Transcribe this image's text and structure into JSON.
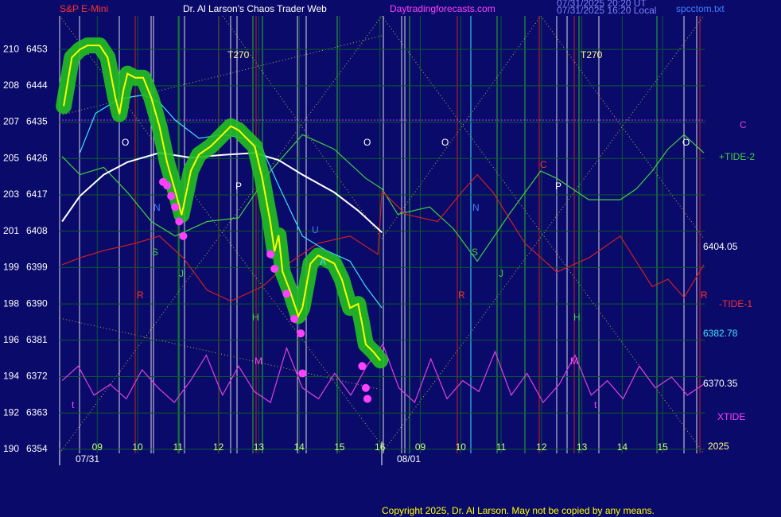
{
  "header": {
    "symbol": "S&P E-Mini",
    "title": "Dr. Al Larson's Chaos Trader Web",
    "site": "Daytradingforecasts.com",
    "stamp1": "07/31/2025 20:20 UT",
    "stamp2": "07/31/2025 16:20 Local",
    "file": "spcctom.txt"
  },
  "chart_data": {
    "type": "line",
    "xlim": [
      -0.95,
      15.05
    ],
    "xticks": [
      {
        "value": 0,
        "label": "09"
      },
      {
        "value": 1,
        "label": "10"
      },
      {
        "value": 2,
        "label": "11"
      },
      {
        "value": 3,
        "label": "12"
      },
      {
        "value": 4,
        "label": "13"
      },
      {
        "value": 5,
        "label": "14"
      },
      {
        "value": 6,
        "label": "15"
      },
      {
        "value": 7,
        "label": "16"
      },
      {
        "value": 8,
        "label": "09"
      },
      {
        "value": 9,
        "label": "10"
      },
      {
        "value": 10,
        "label": "11"
      },
      {
        "value": 11,
        "label": "12"
      },
      {
        "value": 12,
        "label": "13"
      },
      {
        "value": 13,
        "label": "14"
      },
      {
        "value": 14,
        "label": "15"
      }
    ],
    "dates": [
      "07/31",
      "08/01"
    ],
    "ylim": [
      6353,
      6461.3
    ],
    "yticks": [
      6354,
      6363,
      6372,
      6381,
      6390,
      6399,
      6408,
      6417,
      6426,
      6435,
      6444,
      6453
    ],
    "ytick_alt_labels": [
      "190",
      "192",
      "194",
      "196",
      "198",
      "199",
      "201",
      "203",
      "205",
      "207",
      "208",
      "210"
    ],
    "grid": true,
    "grid_color": "#0b5a2e",
    "reference_line": {
      "value": 6435.5,
      "color": "#c040ff"
    },
    "series": [
      {
        "name": "+TIDE-2",
        "color": "#40d040",
        "x": [
          -0.87,
          -0.43,
          0.16,
          0.75,
          1.34,
          1.93,
          2.72,
          3.5,
          4.29,
          5.08,
          5.87,
          6.65,
          7.05,
          7.44,
          8.23,
          8.82,
          9.41,
          10.2,
          10.98,
          11.38,
          12.17,
          12.95,
          13.35,
          13.74,
          14.13,
          14.53,
          15.02
        ],
        "values": [
          6426.5,
          6422.0,
          6423.8,
          6417.6,
          6410.4,
          6406.8,
          6410.4,
          6411.3,
          6422.9,
          6431.9,
          6428.3,
          6421.1,
          6418.5,
          6412.2,
          6414.0,
          6408.6,
          6400.6,
          6412.2,
          6422.9,
          6421.1,
          6415.8,
          6415.8,
          6418.5,
          6422.9,
          6428.3,
          6431.9,
          6427.4
        ]
      },
      {
        "name": "-TIDE-1",
        "color": "#d02020",
        "x": [
          -0.87,
          -0.43,
          0.16,
          0.94,
          1.54,
          2.13,
          2.72,
          3.31,
          4.09,
          4.69,
          5.47,
          6.26,
          6.95,
          7.05,
          7.64,
          8.43,
          9.02,
          9.41,
          9.8,
          10.59,
          11.38,
          12.17,
          12.95,
          13.74,
          14.13,
          14.53,
          15.02
        ],
        "values": [
          6399.7,
          6401.4,
          6403.2,
          6405.0,
          6406.8,
          6401.4,
          6393.4,
          6390.7,
          6394.3,
          6399.7,
          6405.0,
          6406.8,
          6402.3,
          6417.9,
          6412.2,
          6410.4,
          6417.6,
          6422.0,
          6417.6,
          6405.0,
          6397.9,
          6401.4,
          6406.8,
          6394.3,
          6396.1,
          6391.6,
          6399.7
        ]
      },
      {
        "name": "XTIDE",
        "color": "#e040e0",
        "x": [
          -0.87,
          -0.47,
          -0.08,
          0.32,
          0.72,
          1.11,
          1.51,
          1.91,
          2.31,
          2.7,
          3.1,
          3.5,
          3.89,
          4.29,
          4.69,
          5.08,
          5.48,
          5.88,
          6.28,
          6.67,
          7.07,
          7.47,
          7.86,
          8.26,
          8.66,
          9.05,
          9.45,
          9.85,
          10.25,
          10.64,
          11.04,
          11.44,
          11.83,
          12.23,
          12.63,
          13.02,
          13.42,
          13.82,
          14.22,
          14.61,
          15.01
        ],
        "values": [
          6371.0,
          6374.6,
          6367.4,
          6370.1,
          6366.5,
          6373.7,
          6369.2,
          6365.6,
          6371.0,
          6377.3,
          6367.4,
          6374.6,
          6368.3,
          6365.6,
          6379.1,
          6369.2,
          6366.5,
          6372.8,
          6367.4,
          6374.6,
          6380.0,
          6369.2,
          6365.6,
          6376.4,
          6366.5,
          6371.0,
          6368.3,
          6378.2,
          6367.4,
          6372.8,
          6365.6,
          6370.1,
          6377.3,
          6367.4,
          6371.0,
          6366.5,
          6374.6,
          6369.2,
          6371.9,
          6367.4,
          6370.1
        ]
      },
      {
        "color": "#ffffff",
        "end_label": 6404.05,
        "x": [
          -0.87,
          -0.43,
          0.16,
          0.75,
          1.54,
          2.32,
          3.11,
          3.9,
          4.49,
          5.08,
          5.87,
          6.46,
          7.05
        ],
        "values": [
          6410.4,
          6416.7,
          6422.0,
          6425.1,
          6427.4,
          6426.2,
          6426.9,
          6427.4,
          6425.6,
          6422.0,
          6417.6,
          6413.1,
          6407.7
        ]
      },
      {
        "color": "#40e0ff",
        "end_label": 6382.78,
        "x": [
          -0.43,
          -0.04,
          0.55,
          1.14,
          1.54,
          1.93,
          2.52,
          3.11,
          3.7,
          4.09,
          4.49,
          5.08,
          5.67,
          6.26,
          6.65,
          7.05
        ],
        "values": [
          6427.4,
          6437.2,
          6440.8,
          6441.7,
          6439.9,
          6435.5,
          6431.0,
          6431.9,
          6431.0,
          6428.3,
          6419.3,
          6406.8,
          6403.2,
          6400.6,
          6394.3,
          6389.0
        ]
      },
      {
        "color": "#ffff00",
        "halo_color": "#22c022",
        "end_label": 6370.35,
        "x": [
          -0.83,
          -0.63,
          -0.43,
          -0.24,
          0.06,
          0.26,
          0.45,
          0.55,
          0.65,
          0.75,
          0.94,
          1.14,
          1.34,
          1.54,
          1.73,
          1.93,
          2.09,
          2.32,
          2.52,
          2.81,
          3.01,
          3.31,
          3.5,
          3.7,
          3.9,
          4.09,
          4.29,
          4.39,
          4.49,
          4.59,
          4.78,
          4.98,
          5.08,
          5.28,
          5.47,
          5.67,
          5.87,
          6.06,
          6.26,
          6.46,
          6.56,
          6.65,
          6.85,
          7.01
        ],
        "values": [
          6439,
          6451,
          6453,
          6454,
          6454,
          6451,
          6441,
          6437,
          6443,
          6447,
          6446,
          6446,
          6441,
          6434,
          6425,
          6418,
          6412,
          6423,
          6427,
          6429,
          6431,
          6434,
          6433,
          6431,
          6429,
          6421,
          6410,
          6403,
          6407,
          6398,
          6393,
          6387,
          6389,
          6400,
          6402,
          6401,
          6400,
          6396,
          6389,
          6390,
          6385,
          6380,
          6378,
          6376
        ]
      }
    ],
    "pivots": {
      "color": "#ff40ff",
      "x": [
        1.63,
        1.73,
        1.83,
        1.93,
        2.03,
        2.13,
        4.29,
        4.39,
        4.69,
        4.88,
        5.04,
        5.08,
        6.56,
        6.65,
        6.69
      ],
      "values": [
        6420.2,
        6419.3,
        6416.7,
        6414.0,
        6410.4,
        6406.8,
        6402.3,
        6398.7,
        6392.5,
        6386.3,
        6382.7,
        6372.8,
        6374.6,
        6369.2,
        6366.5
      ]
    },
    "annotations": [
      "T270",
      "T270",
      "O",
      "O",
      "O",
      "O",
      "P",
      "P",
      "N",
      "N",
      "S",
      "S",
      "J",
      "J",
      "R",
      "R",
      "R",
      "H",
      "H",
      "M",
      "M",
      "U",
      "A",
      "C",
      "t",
      "t"
    ],
    "reference_label": "C",
    "corner_label": "2025"
  },
  "footer": "Copyright 2025, Dr. Al Larson. May not be copied by any means."
}
